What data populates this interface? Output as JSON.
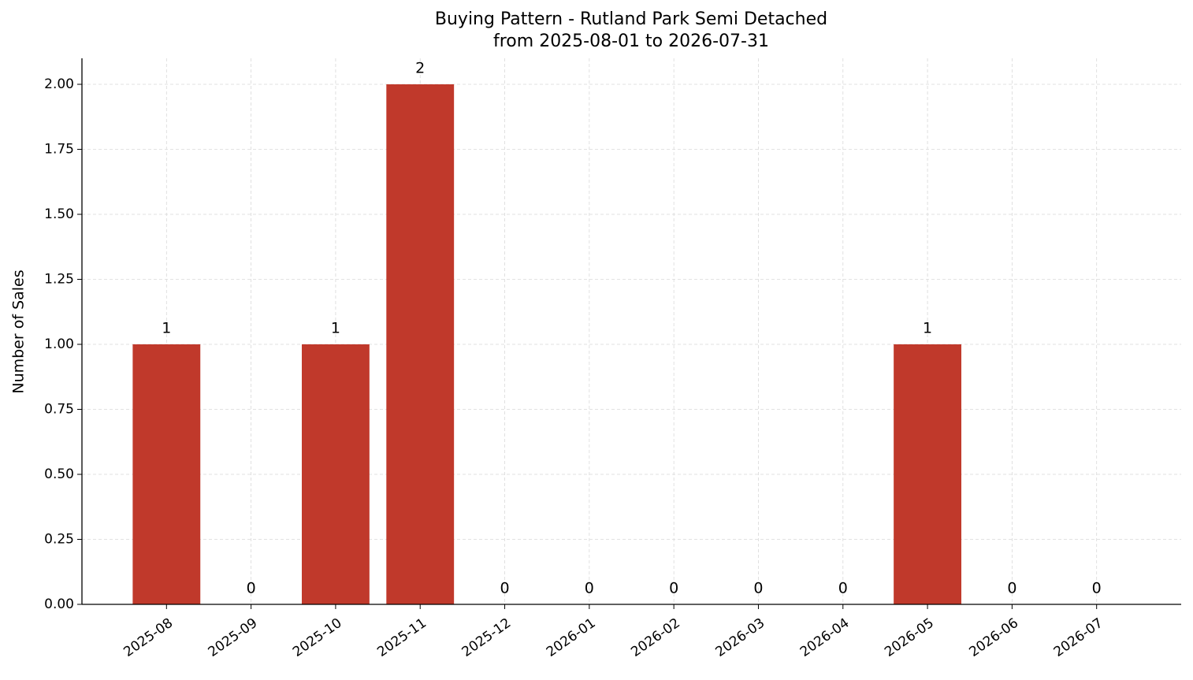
{
  "chart_data": {
    "type": "bar",
    "title": "Buying Pattern - Rutland Park Semi Detached",
    "subtitle": "from 2025-08-01 to 2026-07-31",
    "y_label": "Number of Sales",
    "categories": [
      "2025-08",
      "2025-09",
      "2025-10",
      "2025-11",
      "2025-12",
      "2026-01",
      "2026-02",
      "2026-03",
      "2026-04",
      "2026-05",
      "2026-06",
      "2026-07"
    ],
    "values": [
      1,
      0,
      1,
      2,
      0,
      0,
      0,
      0,
      0,
      1,
      0,
      0
    ],
    "color": "#c0392b",
    "ylim": [
      0,
      2.1
    ],
    "yticks": [
      {
        "value": 0,
        "label": "0.00"
      },
      {
        "value": 0.25,
        "label": "0.25"
      },
      {
        "value": 0.5,
        "label": "0.50"
      },
      {
        "value": 0.75,
        "label": "0.75"
      },
      {
        "value": 1,
        "label": "1.00"
      },
      {
        "value": 1.25,
        "label": "1.25"
      },
      {
        "value": 1.5,
        "label": "1.50"
      },
      {
        "value": 1.75,
        "label": "1.75"
      },
      {
        "value": 2,
        "label": "2.00"
      }
    ],
    "grid": true
  }
}
